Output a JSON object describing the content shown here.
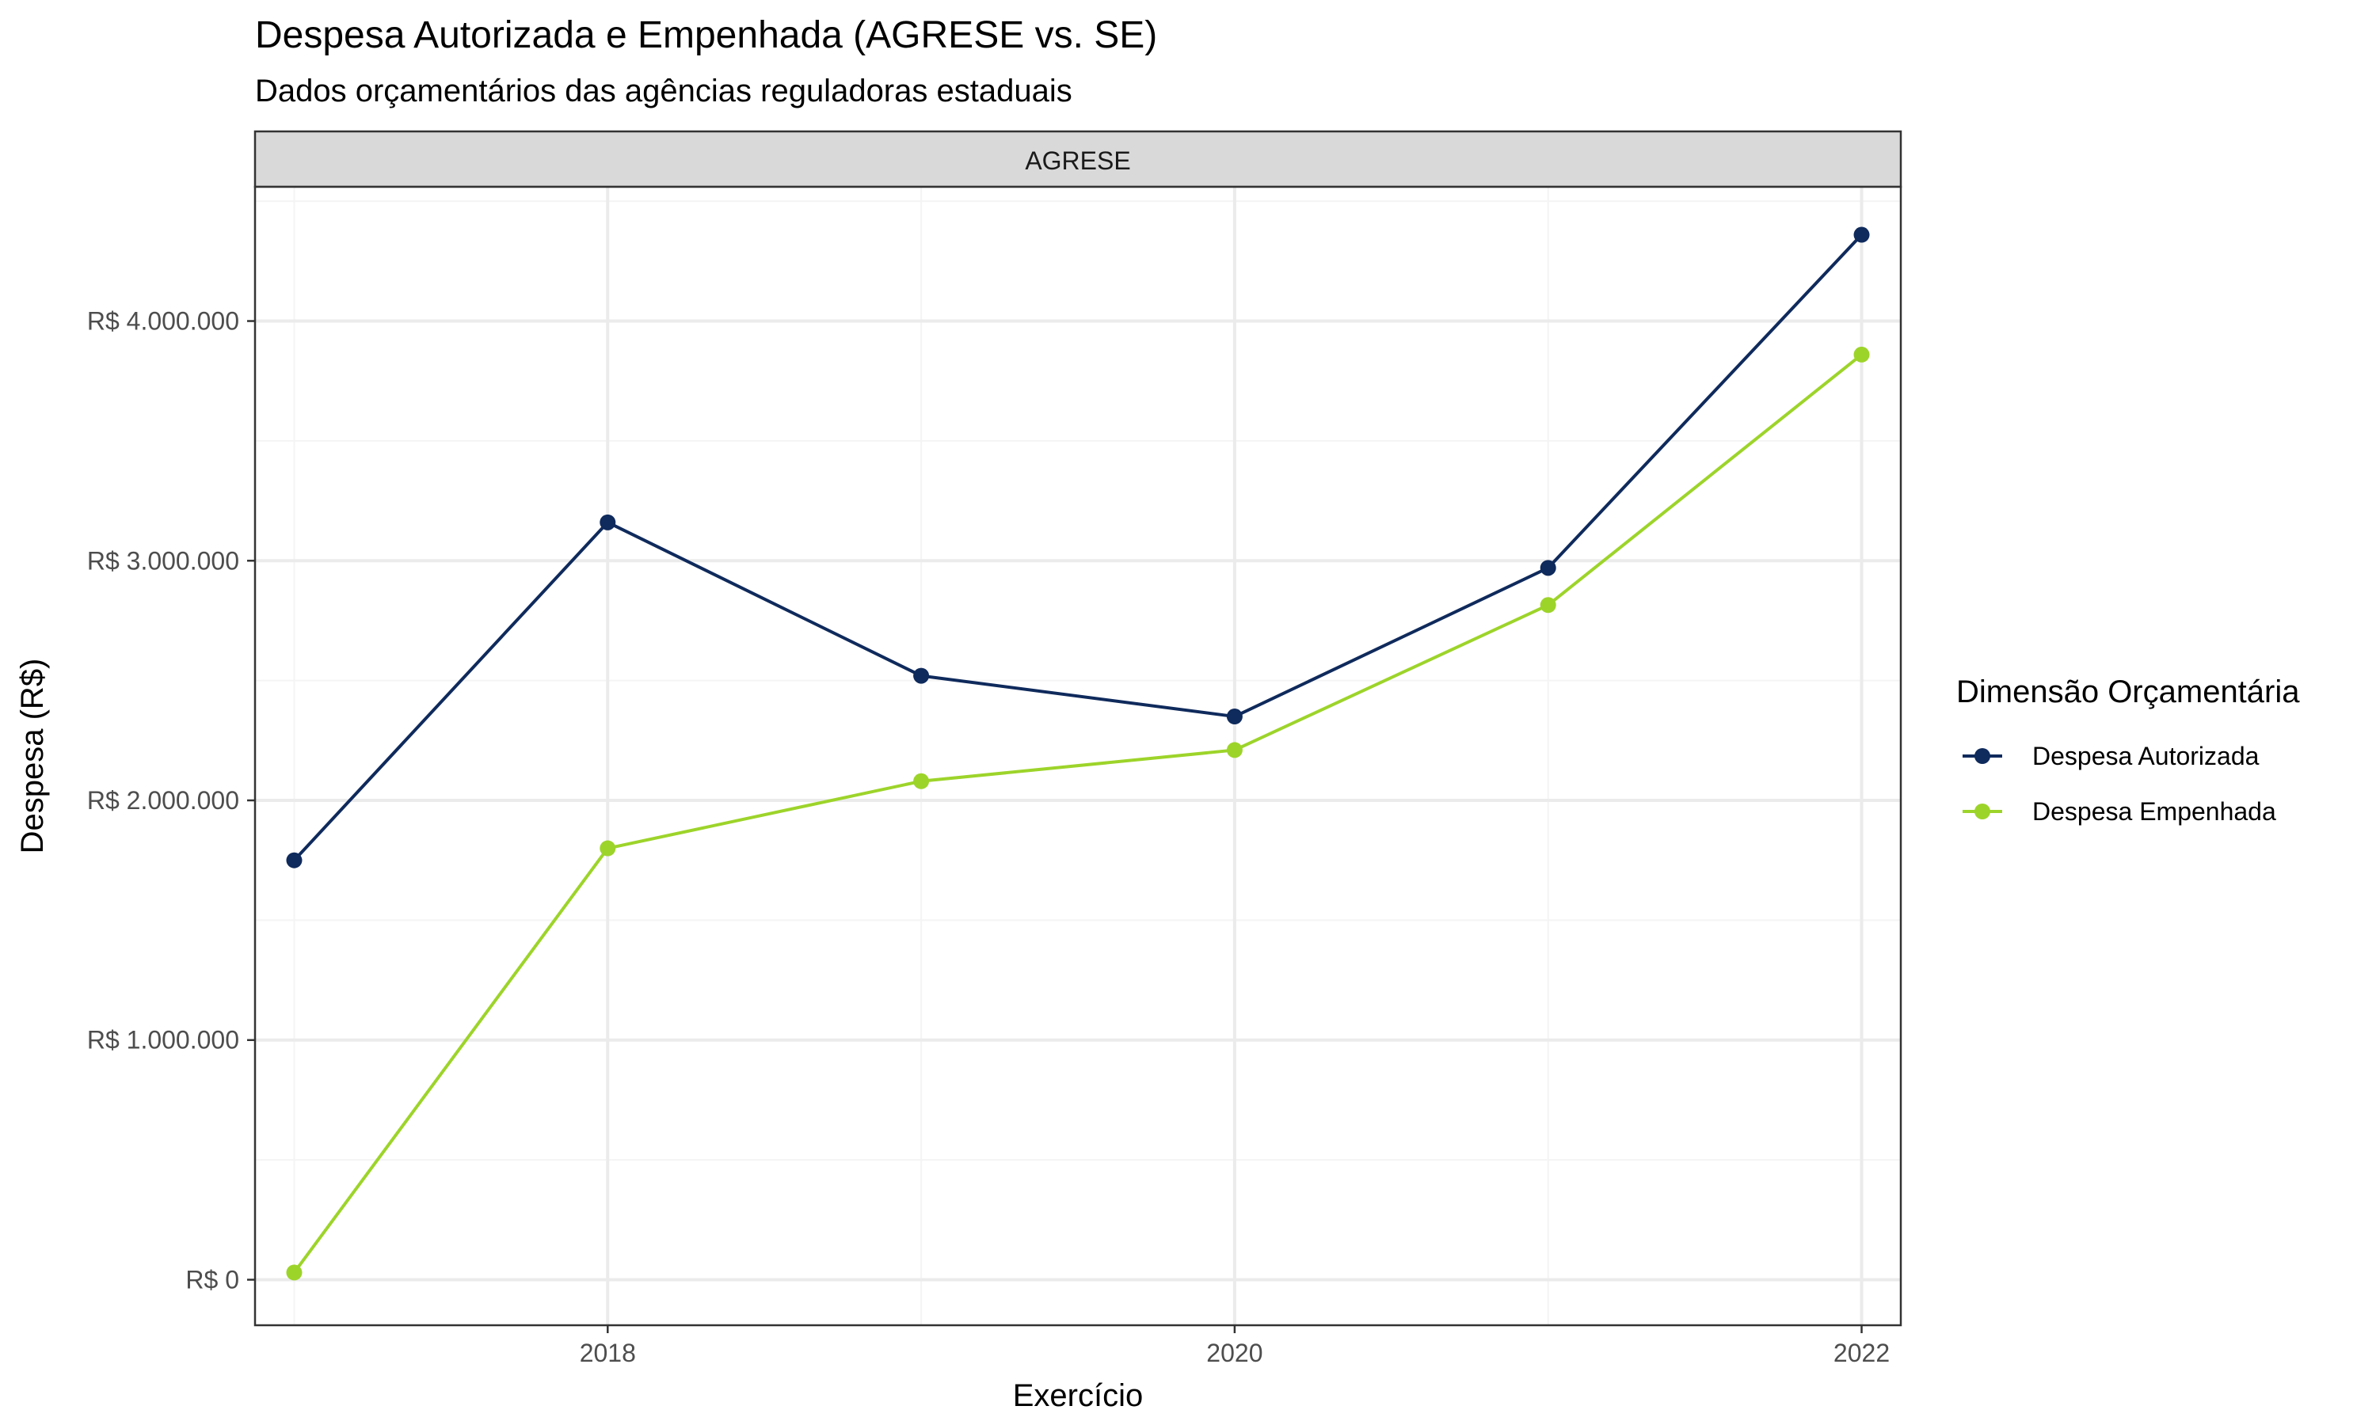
{
  "chart_data": {
    "type": "line",
    "title": "Despesa Autorizada e Empenhada (AGRESE vs. SE)",
    "subtitle": "Dados orçamentários das agências reguladoras estaduais",
    "facet_label": "AGRESE",
    "xlabel": "Exercício",
    "ylabel": "Despesa (R$)",
    "xlim": [
      2016.875,
      2022.125
    ],
    "ylim": [
      -190000,
      4560000
    ],
    "x_ticks": [
      2018,
      2020,
      2022
    ],
    "x_tick_labels": [
      "2018",
      "2020",
      "2022"
    ],
    "x_minor_ticks": [
      2017,
      2019,
      2021
    ],
    "y_ticks": [
      0,
      1000000,
      2000000,
      3000000,
      4000000
    ],
    "y_tick_labels": [
      "R$ 0",
      "R$ 1.000.000",
      "R$ 2.000.000",
      "R$ 3.000.000",
      "R$ 4.000.000"
    ],
    "y_minor_ticks": [
      500000,
      1500000,
      2500000,
      3500000,
      4500000
    ],
    "grid": true,
    "legend_title": "Dimensão Orçamentária",
    "legend_position": "right",
    "x": [
      2017,
      2018,
      2019,
      2020,
      2021,
      2022
    ],
    "series": [
      {
        "name": "Despesa Autorizada",
        "color": "#0f2a5c",
        "values": [
          1750000,
          3160000,
          2520000,
          2350000,
          2970000,
          4360000
        ]
      },
      {
        "name": "Despesa Empenhada",
        "color": "#9dd42a",
        "values": [
          30000,
          1800000,
          2080000,
          2210000,
          2815000,
          3860000
        ]
      }
    ]
  },
  "colors": {
    "strip_background": "#d9d9d9",
    "grid_major": "#ebebeb",
    "grid_minor": "#f4f4f4",
    "panel_border": "#333333",
    "axis_text": "#4d4d4d",
    "text": "#000000"
  }
}
